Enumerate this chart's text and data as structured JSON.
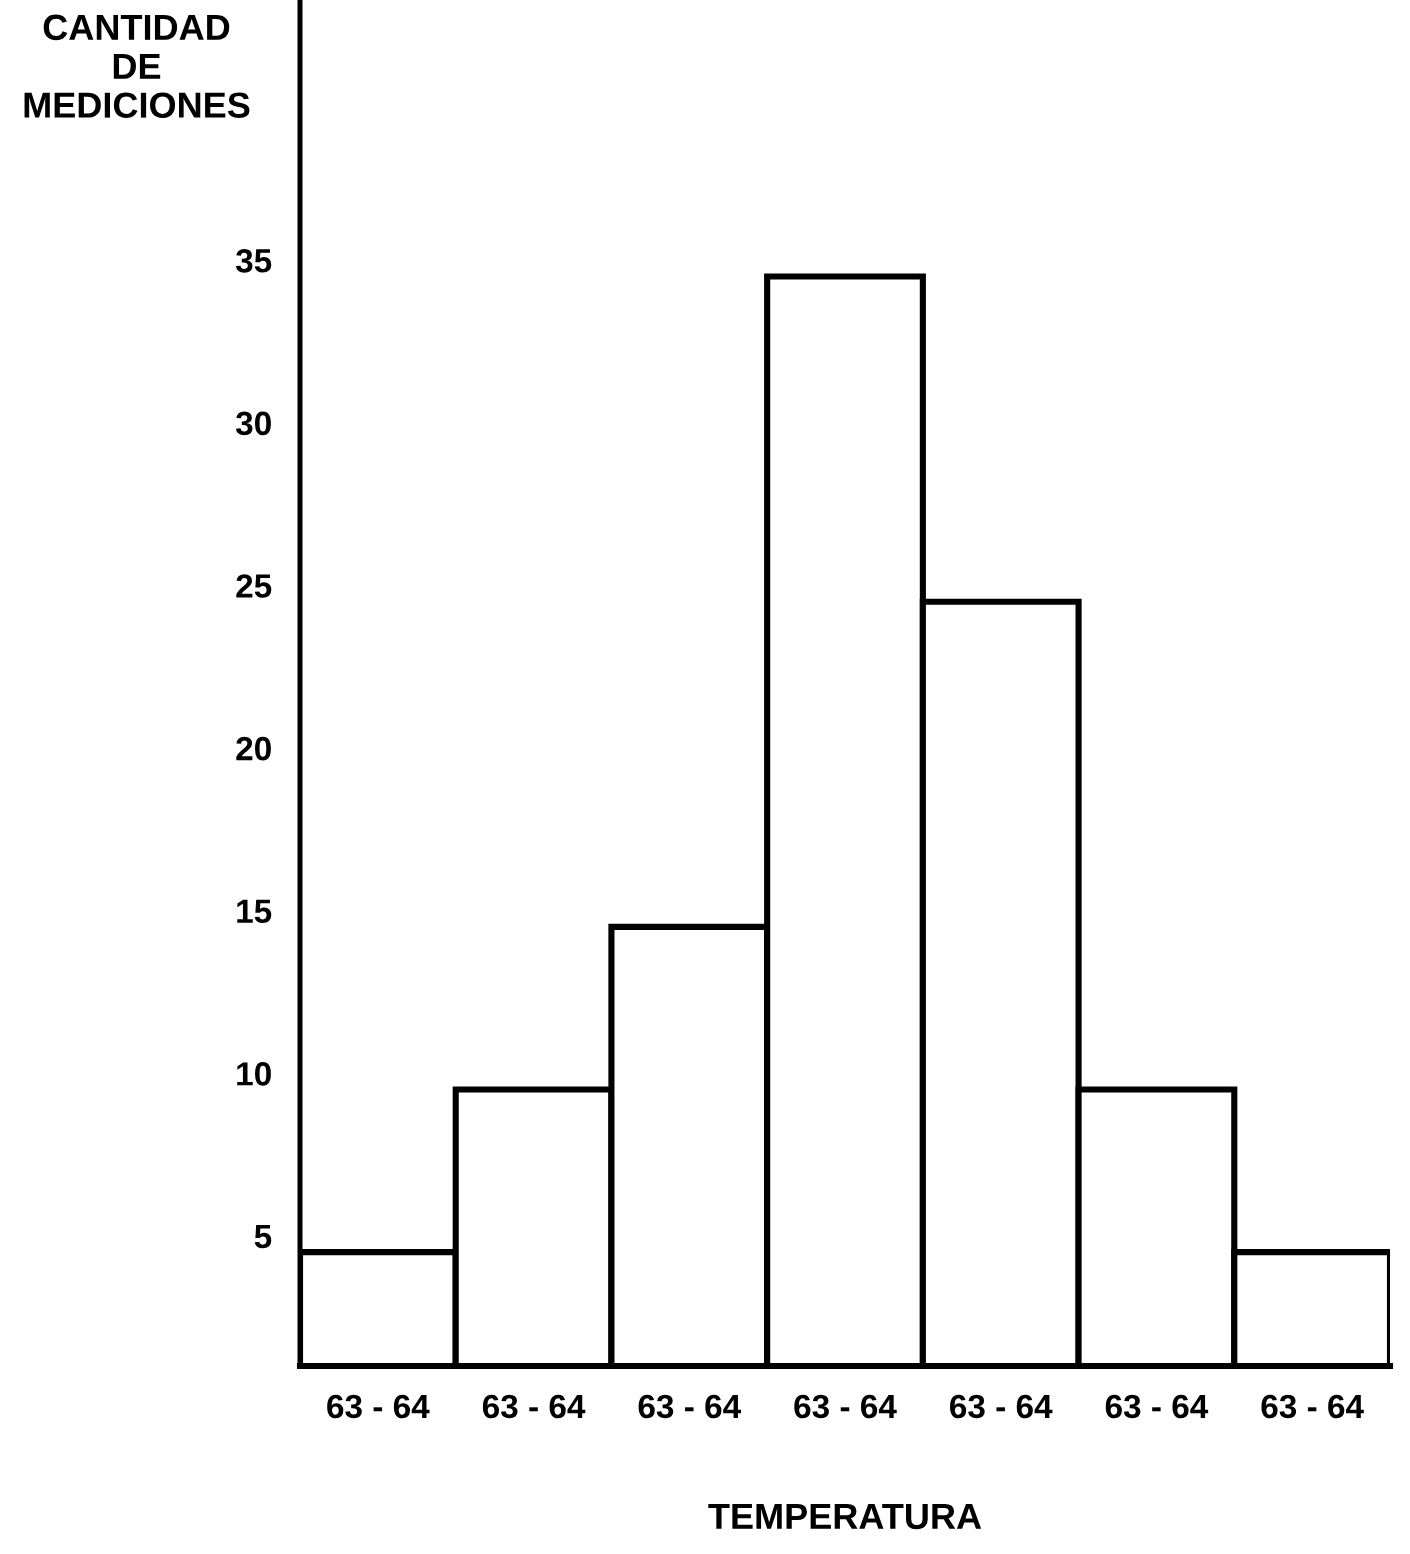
{
  "chart_data": {
    "type": "histogram",
    "ylabel": "CANTIDAD\nDE\nMEDICIONES",
    "xlabel": "TEMPERATURA",
    "categories": [
      "63 - 64",
      "63 - 64",
      "63 - 64",
      "63 - 64",
      "63 - 64",
      "63 - 64",
      "63 - 64"
    ],
    "values": [
      4.5,
      9.5,
      14.5,
      34.5,
      24.5,
      9.5,
      4.5
    ],
    "color": "#ffffff",
    "ylim": [
      1,
      43
    ],
    "yticks": [
      5,
      10,
      15,
      20,
      25,
      30,
      35
    ],
    "grid": false,
    "legend": false
  }
}
